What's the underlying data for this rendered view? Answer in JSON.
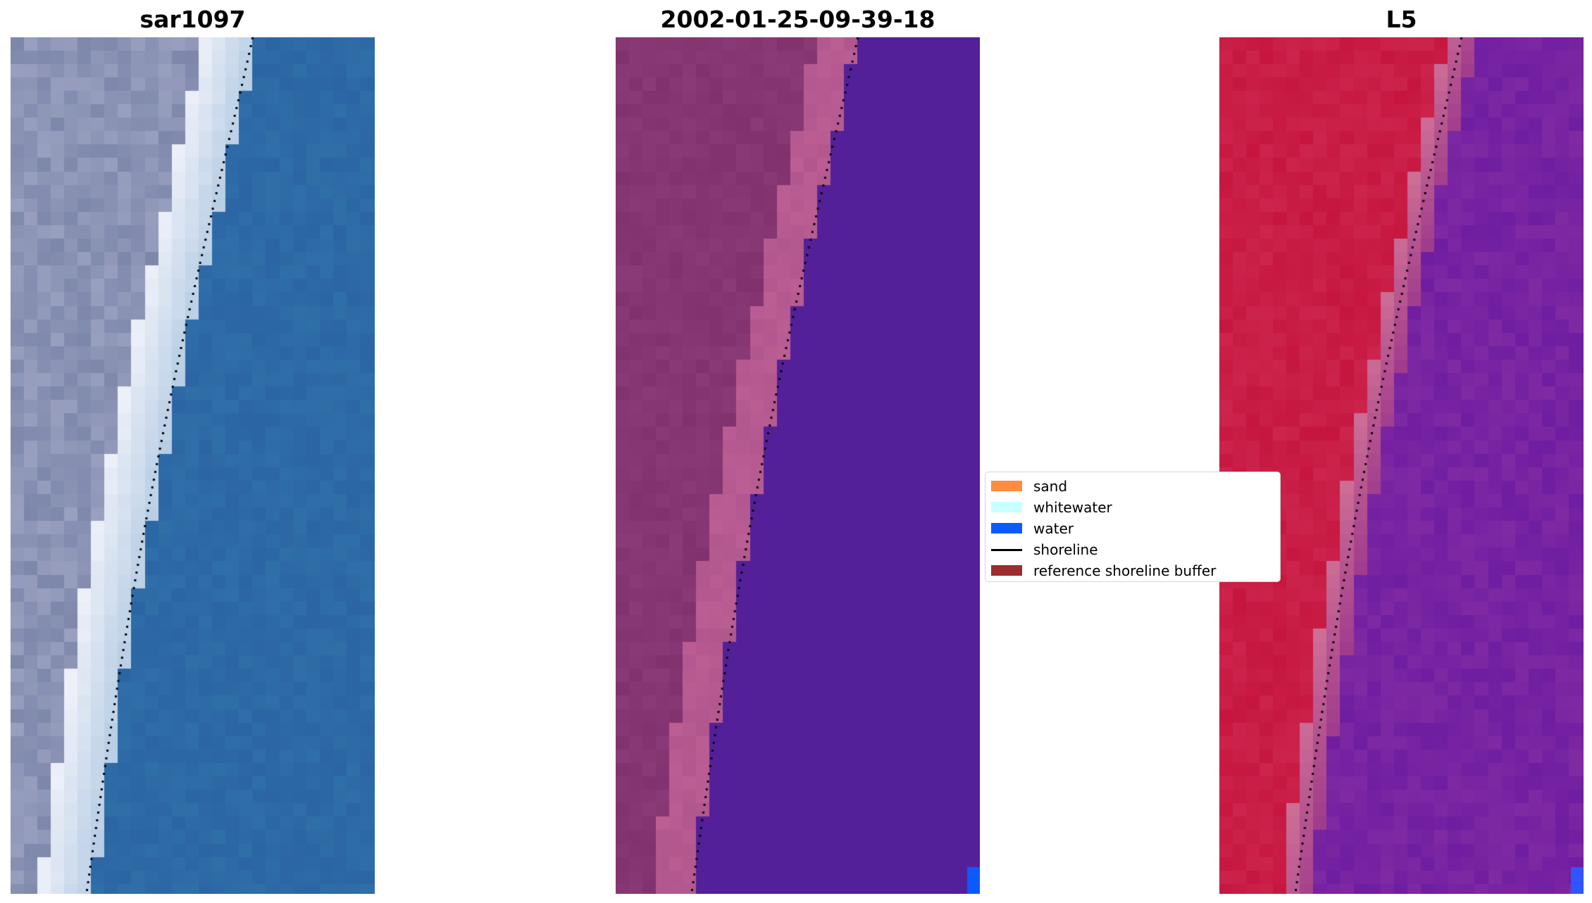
{
  "panels": [
    {
      "title": "sar1097",
      "kind": "rgb"
    },
    {
      "title": "2002-01-25-09-39-18",
      "kind": "classified"
    },
    {
      "title": "L5",
      "kind": "ndwi"
    }
  ],
  "legend": {
    "items": [
      {
        "label": "sand",
        "color": "#ff8c3f",
        "type": "patch"
      },
      {
        "label": "whitewater",
        "color": "#c8ffff",
        "type": "patch"
      },
      {
        "label": "water",
        "color": "#0a5aff",
        "type": "patch"
      },
      {
        "label": "shoreline",
        "color": "#000000",
        "type": "line"
      },
      {
        "label": "reference shoreline buffer",
        "color": "#9b2d2d",
        "type": "patch"
      }
    ]
  },
  "colors": {
    "classified_water": "#532099",
    "classified_land": "#8a3b77",
    "ndwi_land": "#c6163f",
    "ndwi_water": "#7f2aa3",
    "rgb_water": "#2f6fa8",
    "rgb_sand": "#f0f2fa",
    "dotted_shoreline": "#000000"
  }
}
